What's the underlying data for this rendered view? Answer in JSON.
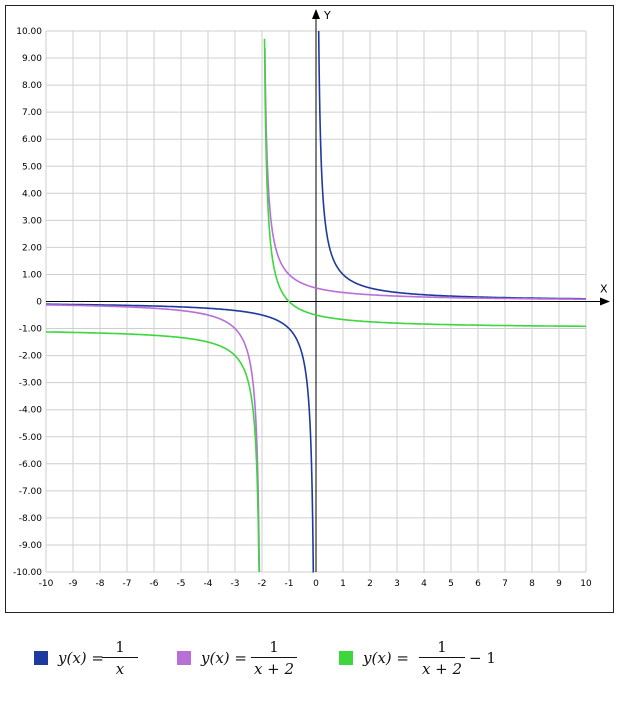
{
  "chart_data": {
    "type": "line",
    "title": "",
    "xlabel": "X",
    "ylabel": "Y",
    "xlim": [
      -10,
      10
    ],
    "ylim": [
      -10,
      10
    ],
    "grid": true,
    "legend_position": "bottom",
    "x_ticks": [
      "-10",
      "-9",
      "-8",
      "-7",
      "-6",
      "-5",
      "-4",
      "-3",
      "-2",
      "-1",
      "0",
      "1",
      "2",
      "3",
      "4",
      "5",
      "6",
      "7",
      "8",
      "9",
      "10"
    ],
    "y_ticks": [
      "-10.00",
      "-9.00",
      "-8.00",
      "-7.00",
      "-6.00",
      "-5.00",
      "-4.00",
      "-3.00",
      "-2.00",
      "-1.00",
      "0",
      "1.00",
      "2.00",
      "3.00",
      "4.00",
      "5.00",
      "6.00",
      "7.00",
      "8.00",
      "9.00",
      "10.00"
    ],
    "series": [
      {
        "formula": "y(x) = 1/x",
        "color": "#1f3a9e",
        "x": [
          -10,
          -5,
          -3,
          -2,
          -1,
          -0.5,
          -0.25,
          -0.1,
          0.1,
          0.25,
          0.5,
          1,
          2,
          3,
          5,
          10
        ],
        "y": [
          -0.1,
          -0.2,
          -0.33,
          -0.5,
          -1,
          -2,
          -4,
          -10,
          10,
          4,
          2,
          1,
          0.5,
          0.33,
          0.2,
          0.1
        ]
      },
      {
        "formula": "y(x) = 1/(x + 2)",
        "color": "#b86fd8",
        "x": [
          -10,
          -6,
          -4,
          -3,
          -2.5,
          -2.25,
          -2.1,
          -1.9,
          -1.75,
          -1.5,
          -1,
          0,
          2,
          5,
          10
        ],
        "y": [
          -0.125,
          -0.25,
          -0.5,
          -1,
          -2,
          -4,
          -10,
          10,
          4,
          2,
          1,
          0.5,
          0.25,
          0.14,
          0.083
        ]
      },
      {
        "formula": "y(x) = 1/(x + 2) − 1",
        "color": "#3dd63d",
        "x": [
          -10,
          -6,
          -4,
          -3,
          -2.5,
          -2.25,
          -2.11,
          -1.91,
          -1.75,
          -1.5,
          -1,
          0,
          2,
          5,
          10
        ],
        "y": [
          -1.125,
          -1.25,
          -1.5,
          -2,
          -3,
          -5,
          -10,
          10,
          3,
          1,
          0,
          -0.5,
          -0.75,
          -0.86,
          -0.92
        ]
      }
    ]
  },
  "legend": [
    {
      "color": "#1f3a9e",
      "lhs": "y(x) =",
      "num": "1",
      "den": "x",
      "tail": ""
    },
    {
      "color": "#b86fd8",
      "lhs": "y(x) =",
      "num": "1",
      "den": "x + 2",
      "tail": ""
    },
    {
      "color": "#3dd63d",
      "lhs": "y(x) =",
      "num": "1",
      "den": "x + 2",
      "tail": "− 1"
    }
  ]
}
